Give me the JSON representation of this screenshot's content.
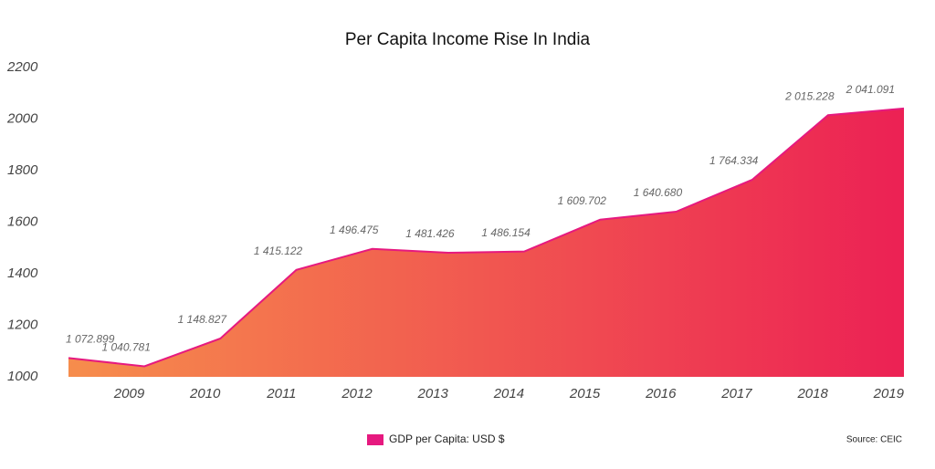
{
  "chart_data": {
    "type": "area",
    "title": "Per Capita Income Rise In India",
    "categories": [
      null,
      "2009",
      "2010",
      "2011",
      "2012",
      "2013",
      "2014",
      "2015",
      "2016",
      "2017",
      "2018",
      "2019"
    ],
    "series": [
      {
        "name": "GDP per Capita: USD $",
        "color": "#e6197f",
        "values": [
          1072.899,
          1040.781,
          1148.827,
          1415.122,
          1496.475,
          1481.426,
          1486.154,
          1609.702,
          1640.68,
          1764.334,
          2015.228,
          2041.091
        ],
        "value_labels": [
          "1 072.899",
          "1 040.781",
          "1 148.827",
          "1 415.122",
          "1 496.475",
          "1 481.426",
          "1 486.154",
          "1 609.702",
          "1 640.680",
          "1 764.334",
          "2 015.228",
          "2 041.091"
        ]
      }
    ],
    "fill_gradient": [
      "#f68d4c",
      "#ec2154"
    ],
    "ylim": [
      1000,
      2200
    ],
    "yticks": [
      1000,
      1200,
      1400,
      1600,
      1800,
      2000,
      2200
    ],
    "source": "Source: CEIC"
  }
}
